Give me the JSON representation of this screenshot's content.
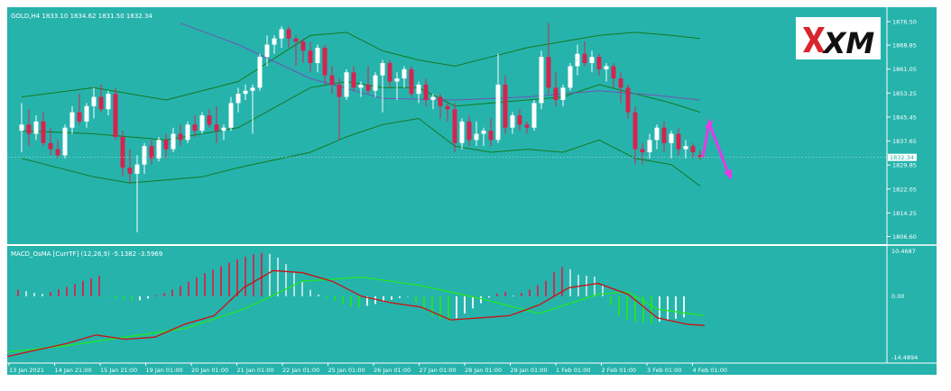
{
  "main_chart": {
    "title": "GOLD,H4  1833.10 1834.62 1831.50 1832.34",
    "price_levels": [
      "1876.50",
      "1868.85",
      "1861.05",
      "1853.25",
      "1845.45",
      "1837.65",
      "1829.85",
      "1822.05",
      "1814.25",
      "1806.60"
    ],
    "current_price": "1832.34",
    "logo_text": "XM"
  },
  "indicator": {
    "title": "MACD_OsMA [CurrTF] (12,26,9) -5.1382 -3.5969",
    "levels": [
      "10.4687",
      "0.00",
      "-14.4894"
    ]
  },
  "time_axis": {
    "labels": [
      "13 Jan 2021",
      "14 Jan 21:00",
      "15 Jan 21:00",
      "19 Jan 01:00",
      "20 Jan 01:00",
      "21 Jan 01:00",
      "22 Jan 01:00",
      "25 Jan 01:00",
      "26 Jan 01:00",
      "27 Jan 01:00",
      "28 Jan 01:00",
      "29 Jan 01:00",
      "1 Feb 01:00",
      "2 Feb 01:00",
      "3 Feb 01:00",
      "4 Feb 01:00"
    ]
  },
  "colors": {
    "background": "#26b3ac",
    "bull_candle": "#ffffff",
    "bear_candle": "#d42450",
    "bollinger": "#137a1f",
    "moving_average": "#6f55b0",
    "macd_line": "#cc1111",
    "signal_line": "#22e622",
    "arrow": "#e838e8"
  },
  "chart_data": {
    "type": "candlestick",
    "symbol": "GOLD",
    "timeframe": "H4",
    "ylim": [
      1805,
      1880
    ],
    "candles": [
      [
        1841.0,
        1850.0,
        1834.0,
        1843.0
      ],
      [
        1843.0,
        1848.0,
        1836.0,
        1840.0
      ],
      [
        1840.0,
        1846.0,
        1838.0,
        1844.0
      ],
      [
        1844.0,
        1847.0,
        1836.0,
        1837.0
      ],
      [
        1837.0,
        1842.0,
        1833.0,
        1835.0
      ],
      [
        1835.0,
        1838.0,
        1832.0,
        1833.0
      ],
      [
        1833.0,
        1843.0,
        1832.0,
        1842.0
      ],
      [
        1842.0,
        1849.0,
        1840.0,
        1847.0
      ],
      [
        1847.0,
        1853.0,
        1843.0,
        1844.0
      ],
      [
        1844.0,
        1850.0,
        1842.0,
        1849.0
      ],
      [
        1849.0,
        1855.0,
        1845.0,
        1852.0
      ],
      [
        1852.0,
        1856.0,
        1847.0,
        1848.0
      ],
      [
        1848.0,
        1854.0,
        1846.0,
        1853.0
      ],
      [
        1853.0,
        1855.0,
        1838.0,
        1839.0
      ],
      [
        1839.0,
        1841.0,
        1826.0,
        1829.0
      ],
      [
        1829.0,
        1835.0,
        1824.0,
        1827.0
      ],
      [
        1827.0,
        1833.0,
        1808.0,
        1830.0
      ],
      [
        1830.0,
        1837.0,
        1827.0,
        1836.0
      ],
      [
        1836.0,
        1838.0,
        1830.0,
        1832.0
      ],
      [
        1832.0,
        1839.0,
        1831.0,
        1838.0
      ],
      [
        1838.0,
        1840.0,
        1832.0,
        1835.0
      ],
      [
        1835.0,
        1842.0,
        1834.0,
        1840.0
      ],
      [
        1840.0,
        1843.0,
        1836.0,
        1838.0
      ],
      [
        1838.0,
        1844.0,
        1837.0,
        1843.0
      ],
      [
        1843.0,
        1846.0,
        1839.0,
        1841.0
      ],
      [
        1841.0,
        1847.0,
        1840.0,
        1846.0
      ],
      [
        1846.0,
        1848.0,
        1842.0,
        1843.0
      ],
      [
        1843.0,
        1849.0,
        1837.0,
        1841.0
      ],
      [
        1841.0,
        1843.0,
        1838.0,
        1842.0
      ],
      [
        1842.0,
        1852.0,
        1841.0,
        1850.0
      ],
      [
        1850.0,
        1855.0,
        1847.0,
        1853.0
      ],
      [
        1853.0,
        1856.0,
        1851.0,
        1854.0
      ],
      [
        1854.0,
        1856.0,
        1840.0,
        1855.0
      ],
      [
        1855.0,
        1866.0,
        1854.0,
        1865.0
      ],
      [
        1865.0,
        1872.0,
        1862.0,
        1869.0
      ],
      [
        1869.0,
        1872.0,
        1866.0,
        1871.0
      ],
      [
        1871.0,
        1875.0,
        1868.0,
        1874.0
      ],
      [
        1874.0,
        1875.0,
        1868.0,
        1871.0
      ],
      [
        1871.0,
        1872.0,
        1862.0,
        1870.0
      ],
      [
        1870.0,
        1871.0,
        1863.0,
        1867.0
      ],
      [
        1867.0,
        1870.0,
        1860.0,
        1863.0
      ],
      [
        1863.0,
        1869.0,
        1860.0,
        1868.0
      ],
      [
        1868.0,
        1869.0,
        1856.0,
        1859.0
      ],
      [
        1859.0,
        1862.0,
        1853.0,
        1856.0
      ],
      [
        1856.0,
        1858.0,
        1838.0,
        1852.0
      ],
      [
        1852.0,
        1861.0,
        1851.0,
        1860.0
      ],
      [
        1860.0,
        1862.0,
        1854.0,
        1855.0
      ],
      [
        1855.0,
        1857.0,
        1852.0,
        1856.0
      ],
      [
        1856.0,
        1862.0,
        1853.0,
        1854.0
      ],
      [
        1854.0,
        1860.0,
        1852.0,
        1859.0
      ],
      [
        1859.0,
        1864.0,
        1847.0,
        1863.0
      ],
      [
        1863.0,
        1864.0,
        1855.0,
        1857.0
      ],
      [
        1857.0,
        1860.0,
        1851.0,
        1858.0
      ],
      [
        1858.0,
        1862.0,
        1855.0,
        1861.0
      ],
      [
        1861.0,
        1862.0,
        1852.0,
        1853.0
      ],
      [
        1853.0,
        1857.0,
        1850.0,
        1856.0
      ],
      [
        1856.0,
        1858.0,
        1849.0,
        1851.0
      ],
      [
        1851.0,
        1853.0,
        1848.0,
        1852.0
      ],
      [
        1852.0,
        1853.0,
        1845.0,
        1849.0
      ],
      [
        1849.0,
        1850.0,
        1844.0,
        1848.0
      ],
      [
        1848.0,
        1850.0,
        1834.0,
        1837.0
      ],
      [
        1837.0,
        1845.0,
        1835.0,
        1844.0
      ],
      [
        1844.0,
        1846.0,
        1836.0,
        1838.0
      ],
      [
        1838.0,
        1844.0,
        1836.0,
        1840.0
      ],
      [
        1840.0,
        1842.0,
        1836.0,
        1841.0
      ],
      [
        1841.0,
        1845.0,
        1836.0,
        1838.0
      ],
      [
        1838.0,
        1866.0,
        1837.0,
        1856.0
      ],
      [
        1856.0,
        1859.0,
        1840.0,
        1842.0
      ],
      [
        1842.0,
        1847.0,
        1840.0,
        1846.0
      ],
      [
        1846.0,
        1848.0,
        1841.0,
        1843.0
      ],
      [
        1843.0,
        1844.0,
        1840.0,
        1842.0
      ],
      [
        1842.0,
        1851.0,
        1841.0,
        1850.0
      ],
      [
        1850.0,
        1867.0,
        1848.0,
        1865.0
      ],
      [
        1865.0,
        1876.0,
        1853.0,
        1855.0
      ],
      [
        1855.0,
        1860.0,
        1849.0,
        1851.0
      ],
      [
        1851.0,
        1856.0,
        1849.0,
        1855.0
      ],
      [
        1855.0,
        1863.0,
        1854.0,
        1862.0
      ],
      [
        1862.0,
        1869.0,
        1859.0,
        1866.0
      ],
      [
        1866.0,
        1870.0,
        1862.0,
        1863.0
      ],
      [
        1863.0,
        1867.0,
        1860.0,
        1865.0
      ],
      [
        1865.0,
        1866.0,
        1859.0,
        1861.0
      ],
      [
        1861.0,
        1863.0,
        1857.0,
        1862.0
      ],
      [
        1862.0,
        1863.0,
        1855.0,
        1858.0
      ],
      [
        1858.0,
        1860.0,
        1850.0,
        1855.0
      ],
      [
        1855.0,
        1856.0,
        1845.0,
        1847.0
      ],
      [
        1847.0,
        1849.0,
        1830.0,
        1835.0
      ],
      [
        1835.0,
        1837.0,
        1830.0,
        1834.0
      ],
      [
        1834.0,
        1840.0,
        1832.0,
        1838.0
      ],
      [
        1838.0,
        1843.0,
        1835.0,
        1842.0
      ],
      [
        1842.0,
        1844.0,
        1834.0,
        1837.0
      ],
      [
        1837.0,
        1841.0,
        1832.0,
        1840.0
      ],
      [
        1840.0,
        1842.0,
        1833.0,
        1835.0
      ],
      [
        1835.0,
        1838.0,
        1832.0,
        1836.0
      ],
      [
        1836.0,
        1837.0,
        1832.0,
        1834.0
      ],
      [
        1833.1,
        1834.62,
        1831.5,
        1832.34
      ]
    ],
    "bollinger_upper": [
      [
        0,
        1852.0
      ],
      [
        10,
        1855.0
      ],
      [
        20,
        1851.0
      ],
      [
        30,
        1857.0
      ],
      [
        40,
        1872.0
      ],
      [
        45,
        1873.0
      ],
      [
        50,
        1867.0
      ],
      [
        55,
        1864.0
      ],
      [
        60,
        1862.0
      ],
      [
        65,
        1865.0
      ],
      [
        70,
        1868.0
      ],
      [
        75,
        1870.0
      ],
      [
        80,
        1872.0
      ],
      [
        85,
        1873.0
      ],
      [
        90,
        1872.0
      ],
      [
        94,
        1871.0
      ]
    ],
    "bollinger_lower": [
      [
        0,
        1832.0
      ],
      [
        10,
        1826.0
      ],
      [
        15,
        1824.0
      ],
      [
        20,
        1825.0
      ],
      [
        25,
        1826.0
      ],
      [
        30,
        1829.0
      ],
      [
        40,
        1834.0
      ],
      [
        45,
        1839.0
      ],
      [
        50,
        1843.0
      ],
      [
        55,
        1845.0
      ],
      [
        60,
        1836.0
      ],
      [
        65,
        1834.0
      ],
      [
        70,
        1835.0
      ],
      [
        75,
        1834.0
      ],
      [
        80,
        1838.0
      ],
      [
        85,
        1832.0
      ],
      [
        90,
        1830.0
      ],
      [
        94,
        1823.0
      ]
    ],
    "bollinger_middle": [
      [
        0,
        1841.0
      ],
      [
        10,
        1840.0
      ],
      [
        20,
        1838.0
      ],
      [
        30,
        1842.0
      ],
      [
        40,
        1855.0
      ],
      [
        45,
        1857.0
      ],
      [
        50,
        1855.0
      ],
      [
        55,
        1855.0
      ],
      [
        60,
        1849.0
      ],
      [
        65,
        1850.0
      ],
      [
        70,
        1851.0
      ],
      [
        75,
        1852.0
      ],
      [
        80,
        1856.0
      ],
      [
        85,
        1853.0
      ],
      [
        90,
        1850.0
      ],
      [
        94,
        1847.0
      ]
    ],
    "moving_average": [
      [
        22,
        1876.0
      ],
      [
        30,
        1869.0
      ],
      [
        40,
        1858.0
      ],
      [
        50,
        1851.5
      ],
      [
        60,
        1851.0
      ],
      [
        70,
        1852.0
      ],
      [
        80,
        1854.0
      ],
      [
        88,
        1852.5
      ],
      [
        94,
        1851.0
      ]
    ],
    "macd_ylim": [
      -14.4894,
      10.4687
    ],
    "macd_hist": [
      1.5,
      1.2,
      0.8,
      0.6,
      1.0,
      1.6,
      2.2,
      2.9,
      3.6,
      4.2,
      4.8,
      -0.2,
      -0.5,
      -0.8,
      -1.0,
      -0.9,
      -0.5,
      0.2,
      0.8,
      1.5,
      2.4,
      3.4,
      4.4,
      5.4,
      6.2,
      7.0,
      7.8,
      8.6,
      9.2,
      9.8,
      10.1,
      9.9,
      9.0,
      7.5,
      5.5,
      3.5,
      1.5,
      0.4,
      -0.4,
      -1.0,
      -1.8,
      -2.4,
      -2.6,
      -2.2,
      -1.8,
      -1.2,
      -0.8,
      -0.4,
      -0.1,
      -1.4,
      -3.2,
      -4.6,
      -5.3,
      -5.6,
      -5.1,
      -4.0,
      -2.8,
      -1.6,
      -0.3,
      0.6,
      1.0,
      0.2,
      0.8,
      1.6,
      2.6,
      3.6,
      5.6,
      6.8,
      6.3,
      5.0,
      4.8,
      4.6,
      2.6,
      -2.0,
      -4.6,
      -5.4,
      -5.9,
      -6.2,
      -6.4,
      -5.9,
      -5.5,
      -5.2,
      -4.9
    ],
    "macd_line": [
      [
        0,
        -14.0
      ],
      [
        5,
        -12.5
      ],
      [
        10,
        -11.0
      ],
      [
        15,
        -9.0
      ],
      [
        20,
        -10.0
      ],
      [
        25,
        -9.5
      ],
      [
        30,
        -6.5
      ],
      [
        35,
        -4.5
      ],
      [
        40,
        2.0
      ],
      [
        45,
        6.0
      ],
      [
        50,
        5.5
      ],
      [
        55,
        3.5
      ],
      [
        60,
        0.0
      ],
      [
        65,
        -1.5
      ],
      [
        70,
        -2.5
      ],
      [
        75,
        -5.5
      ],
      [
        80,
        -5.0
      ],
      [
        85,
        -4.5
      ],
      [
        90,
        -2.0
      ],
      [
        95,
        2.0
      ],
      [
        100,
        3.0
      ],
      [
        105,
        0.5
      ],
      [
        110,
        -5.0
      ],
      [
        115,
        -6.5
      ],
      [
        118,
        -6.8
      ]
    ],
    "signal_line": [
      [
        0,
        -13.0
      ],
      [
        10,
        -11.5
      ],
      [
        20,
        -9.5
      ],
      [
        30,
        -7.5
      ],
      [
        40,
        -3.0
      ],
      [
        50,
        3.5
      ],
      [
        60,
        4.5
      ],
      [
        70,
        2.5
      ],
      [
        80,
        -0.5
      ],
      [
        90,
        -4.0
      ],
      [
        100,
        0.5
      ],
      [
        105,
        1.0
      ],
      [
        110,
        -3.0
      ],
      [
        118,
        -4.5
      ]
    ]
  }
}
